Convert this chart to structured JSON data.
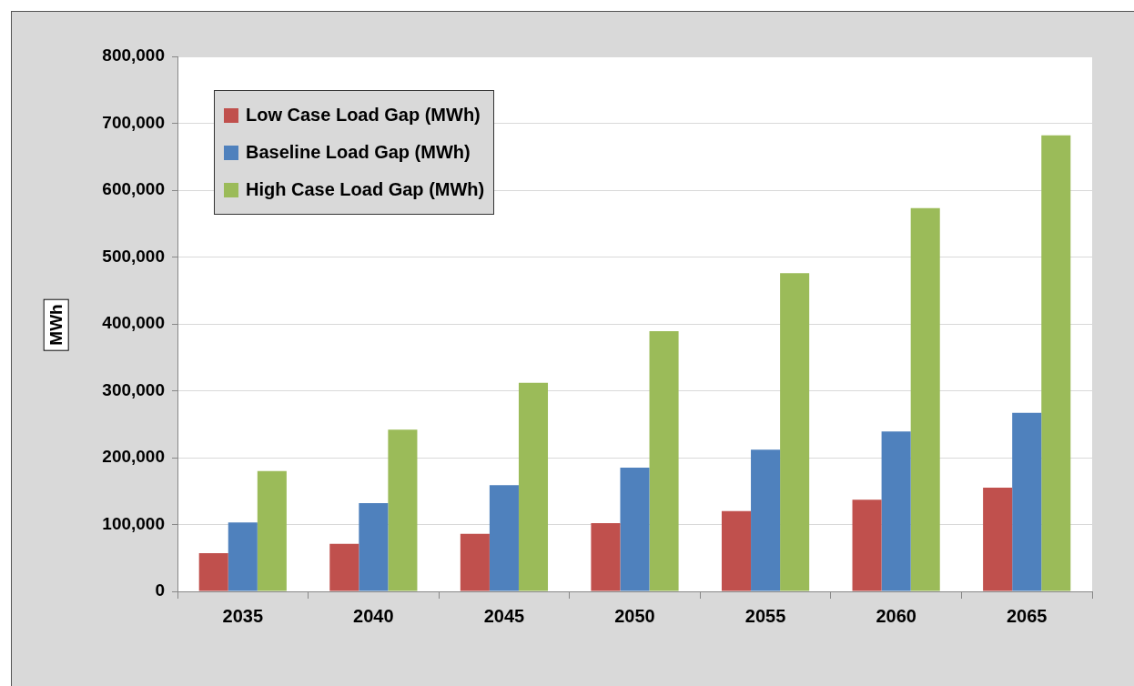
{
  "chart_data": {
    "type": "bar",
    "ylabel": "MWh",
    "categories": [
      "2035",
      "2040",
      "2045",
      "2050",
      "2055",
      "2060",
      "2065"
    ],
    "series": [
      {
        "name": "Low Case Load Gap (MWh)",
        "color": "#c0504d",
        "values": [
          57000,
          71000,
          86000,
          102000,
          120000,
          137000,
          155000
        ]
      },
      {
        "name": "Baseline Load Gap (MWh)",
        "color": "#4f81bd",
        "values": [
          103000,
          132000,
          159000,
          185000,
          212000,
          239000,
          267000
        ]
      },
      {
        "name": "High Case Load Gap (MWh)",
        "color": "#9bbb59",
        "values": [
          180000,
          242000,
          312000,
          389000,
          476000,
          573000,
          682000
        ]
      }
    ],
    "ylim": [
      0,
      800000
    ],
    "yticks": [
      0,
      {
        "value": 100000,
        "label": "100,000"
      },
      {
        "value": 200000,
        "label": "200,000"
      },
      {
        "value": 300000,
        "label": "300,000"
      },
      {
        "value": 400000,
        "label": "400,000"
      },
      {
        "value": 500000,
        "label": "500,000"
      },
      {
        "value": 600000,
        "label": "600,000"
      },
      {
        "value": 700000,
        "label": "700,000"
      },
      {
        "value": 800000,
        "label": "800,000"
      }
    ],
    "grid": "y",
    "legend": "top left"
  }
}
